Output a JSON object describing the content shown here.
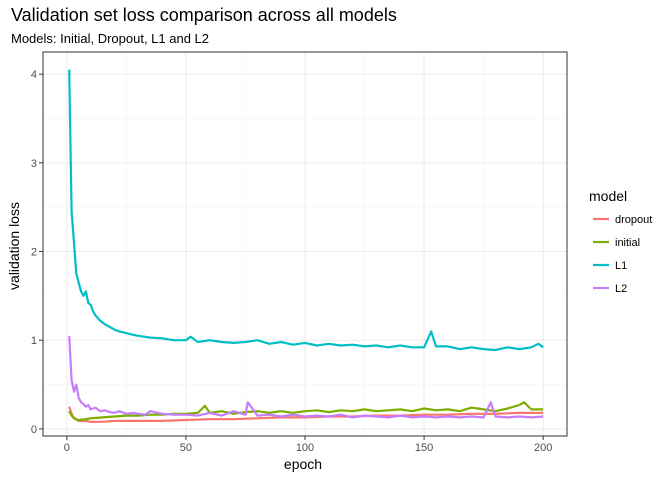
{
  "chart_data": {
    "type": "line",
    "title": "Validation set loss comparison across all models",
    "subtitle": "Models: Initial, Dropout, L1 and L2",
    "xlabel": "epoch",
    "ylabel": "validation loss",
    "xlim": [
      -10,
      210
    ],
    "ylim": [
      -0.08,
      4.25
    ],
    "xticks": [
      0,
      50,
      100,
      150,
      200
    ],
    "yticks": [
      0,
      1,
      2,
      3,
      4
    ],
    "grid": true,
    "legend": {
      "title": "model",
      "position": "right"
    },
    "series": [
      {
        "name": "dropout",
        "color": "#F8766D",
        "x": [
          1,
          2,
          3,
          5,
          8,
          10,
          15,
          20,
          30,
          40,
          50,
          60,
          70,
          80,
          90,
          100,
          110,
          120,
          130,
          140,
          150,
          160,
          170,
          180,
          190,
          195,
          200
        ],
        "y": [
          0.25,
          0.17,
          0.12,
          0.09,
          0.09,
          0.08,
          0.08,
          0.09,
          0.09,
          0.09,
          0.1,
          0.11,
          0.11,
          0.12,
          0.13,
          0.13,
          0.14,
          0.14,
          0.15,
          0.15,
          0.16,
          0.16,
          0.17,
          0.17,
          0.18,
          0.18,
          0.18
        ]
      },
      {
        "name": "initial",
        "color": "#7CAE00",
        "x": [
          1,
          2,
          3,
          5,
          8,
          10,
          15,
          20,
          25,
          30,
          35,
          40,
          45,
          50,
          55,
          58,
          60,
          65,
          70,
          75,
          80,
          85,
          90,
          95,
          100,
          105,
          110,
          115,
          120,
          125,
          130,
          135,
          140,
          145,
          150,
          155,
          160,
          165,
          170,
          175,
          180,
          185,
          190,
          192,
          195,
          200
        ],
        "y": [
          0.2,
          0.15,
          0.12,
          0.1,
          0.11,
          0.12,
          0.13,
          0.14,
          0.15,
          0.15,
          0.16,
          0.16,
          0.17,
          0.17,
          0.18,
          0.26,
          0.18,
          0.2,
          0.17,
          0.19,
          0.2,
          0.18,
          0.2,
          0.18,
          0.2,
          0.21,
          0.19,
          0.21,
          0.2,
          0.22,
          0.2,
          0.21,
          0.22,
          0.2,
          0.23,
          0.21,
          0.22,
          0.2,
          0.24,
          0.22,
          0.2,
          0.23,
          0.27,
          0.3,
          0.22,
          0.22
        ]
      },
      {
        "name": "L1",
        "color": "#00BFC4",
        "x": [
          1,
          2,
          3,
          4,
          5,
          6,
          7,
          8,
          9,
          10,
          11,
          12,
          14,
          16,
          18,
          20,
          22,
          25,
          28,
          30,
          35,
          40,
          45,
          50,
          52,
          55,
          60,
          65,
          70,
          75,
          80,
          85,
          90,
          95,
          100,
          105,
          110,
          115,
          120,
          125,
          130,
          135,
          140,
          145,
          150,
          153,
          155,
          160,
          165,
          170,
          175,
          180,
          185,
          190,
          195,
          198,
          200
        ],
        "y": [
          4.05,
          2.45,
          2.1,
          1.75,
          1.65,
          1.55,
          1.5,
          1.55,
          1.42,
          1.4,
          1.33,
          1.28,
          1.22,
          1.18,
          1.15,
          1.12,
          1.1,
          1.08,
          1.06,
          1.05,
          1.03,
          1.02,
          1.0,
          1.0,
          1.04,
          0.98,
          1.0,
          0.98,
          0.97,
          0.98,
          1.0,
          0.96,
          0.98,
          0.95,
          0.97,
          0.94,
          0.96,
          0.94,
          0.95,
          0.93,
          0.94,
          0.92,
          0.94,
          0.92,
          0.92,
          1.1,
          0.93,
          0.93,
          0.9,
          0.92,
          0.9,
          0.89,
          0.92,
          0.9,
          0.92,
          0.96,
          0.92
        ]
      },
      {
        "name": "L2",
        "color": "#C77CFF",
        "x": [
          1,
          2,
          3,
          4,
          5,
          6,
          7,
          8,
          9,
          10,
          12,
          14,
          16,
          18,
          20,
          22,
          25,
          28,
          30,
          33,
          35,
          40,
          45,
          50,
          55,
          60,
          65,
          70,
          75,
          76,
          80,
          85,
          90,
          95,
          100,
          105,
          110,
          115,
          120,
          125,
          130,
          135,
          140,
          145,
          150,
          155,
          160,
          165,
          170,
          175,
          178,
          180,
          185,
          190,
          195,
          200
        ],
        "y": [
          1.05,
          0.55,
          0.42,
          0.5,
          0.35,
          0.3,
          0.28,
          0.25,
          0.27,
          0.22,
          0.24,
          0.2,
          0.21,
          0.19,
          0.18,
          0.2,
          0.17,
          0.18,
          0.17,
          0.16,
          0.2,
          0.17,
          0.16,
          0.16,
          0.15,
          0.18,
          0.15,
          0.2,
          0.16,
          0.3,
          0.15,
          0.16,
          0.14,
          0.16,
          0.14,
          0.15,
          0.14,
          0.16,
          0.13,
          0.15,
          0.14,
          0.13,
          0.15,
          0.13,
          0.14,
          0.13,
          0.14,
          0.13,
          0.14,
          0.13,
          0.3,
          0.14,
          0.13,
          0.14,
          0.13,
          0.14
        ]
      }
    ]
  }
}
